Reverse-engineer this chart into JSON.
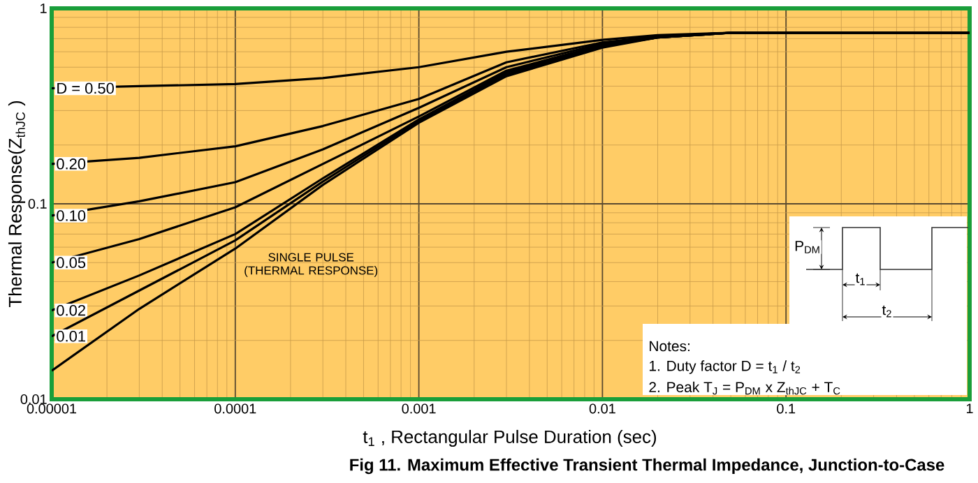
{
  "chart_data": {
    "type": "line",
    "title": "Fig 11.  Maximum Effective Transient Thermal Impedance, Junction-to-Case",
    "xlabel": "t$_{1}$ , Rectangular Pulse Duration (sec)",
    "ylabel": "Thermal Response(Z$_{thJC}$ )",
    "log": "xy",
    "grid": true,
    "x": [
      1e-05,
      3e-05,
      0.0001,
      0.0003,
      0.001,
      0.003,
      0.01,
      0.02,
      0.05,
      0.1,
      1
    ],
    "xlim": [
      1e-05,
      1
    ],
    "ylim": [
      0.01,
      1
    ],
    "xticks": [
      {
        "value": 1e-05,
        "label": "0.00001"
      },
      {
        "value": 0.0001,
        "label": "0.0001"
      },
      {
        "value": 0.001,
        "label": "0.001"
      },
      {
        "value": 0.01,
        "label": "0.01"
      },
      {
        "value": 0.1,
        "label": "0.1"
      },
      {
        "value": 1,
        "label": "1"
      }
    ],
    "yticks": [
      {
        "value": 0.01,
        "label": "0.01"
      },
      {
        "value": 0.1,
        "label": "0.1"
      },
      {
        "value": 1,
        "label": "1"
      }
    ],
    "series": [
      {
        "name": "D = 0.50",
        "color": "#000000",
        "values": [
          0.39,
          0.4,
          0.41,
          0.44,
          0.5,
          0.6,
          0.69,
          0.73,
          0.75,
          0.75,
          0.75
        ]
      },
      {
        "name": "0.20",
        "color": "#000000",
        "values": [
          0.16,
          0.172,
          0.197,
          0.25,
          0.344,
          0.53,
          0.67,
          0.72,
          0.75,
          0.75,
          0.75
        ]
      },
      {
        "name": "0.10",
        "color": "#000000",
        "values": [
          0.087,
          0.103,
          0.129,
          0.19,
          0.31,
          0.5,
          0.66,
          0.72,
          0.75,
          0.75,
          0.75
        ]
      },
      {
        "name": "0.05",
        "color": "#000000",
        "values": [
          0.05,
          0.066,
          0.096,
          0.16,
          0.28,
          0.48,
          0.65,
          0.71,
          0.75,
          0.75,
          0.75
        ]
      },
      {
        "name": "0.02",
        "color": "#000000",
        "values": [
          0.0285,
          0.043,
          0.07,
          0.135,
          0.27,
          0.47,
          0.64,
          0.71,
          0.75,
          0.75,
          0.75
        ]
      },
      {
        "name": "0.01",
        "color": "#000000",
        "values": [
          0.021,
          0.036,
          0.065,
          0.13,
          0.265,
          0.46,
          0.64,
          0.71,
          0.75,
          0.75,
          0.75
        ]
      },
      {
        "name": "SINGLE PULSE (THERMAL RESPONSE)",
        "color": "#000000",
        "values": [
          0.014,
          0.029,
          0.059,
          0.125,
          0.26,
          0.45,
          0.63,
          0.71,
          0.75,
          0.75,
          0.75
        ]
      }
    ],
    "annotations": [
      "Notes:",
      "1. Duty factor D = t$_{1}$ / t$_{2}$",
      "2. Peak T$_{J}$ = P$_{DM}$ x  Z$_{thJC}$ + T$_{C}$",
      "P$_{DM}$",
      "t$_{1}$",
      "t$_{2}$"
    ]
  }
}
